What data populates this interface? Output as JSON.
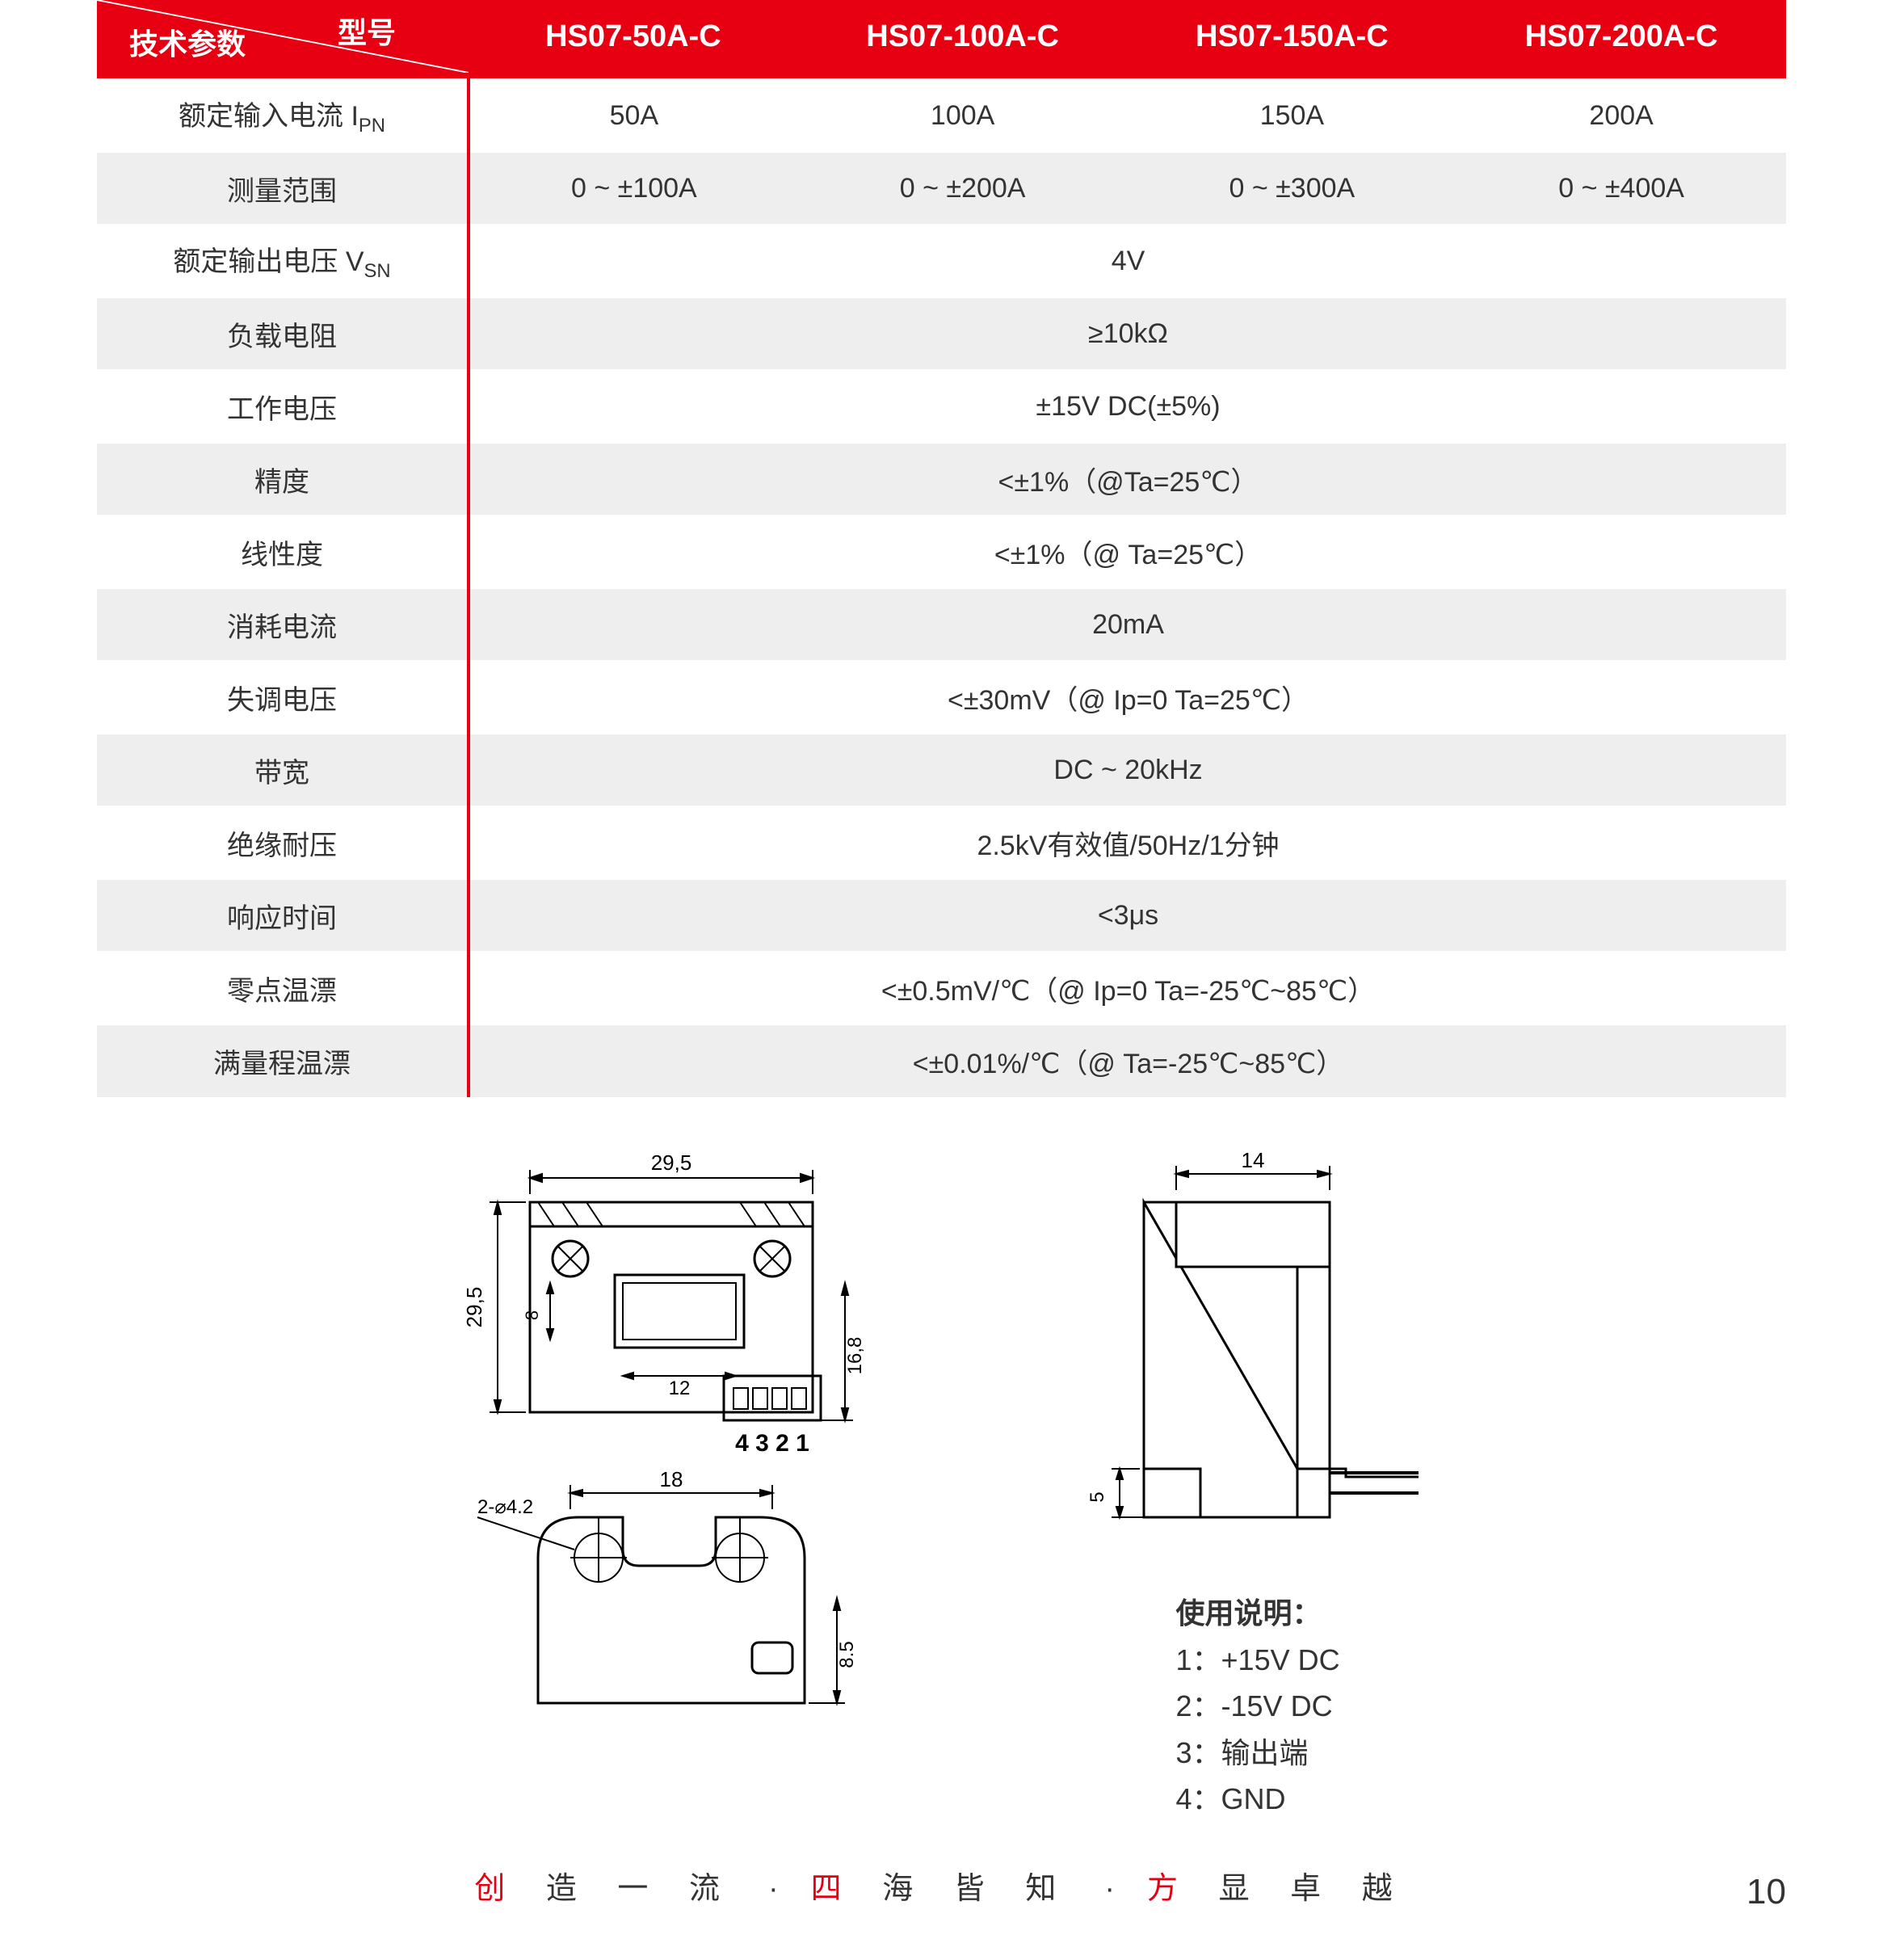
{
  "header": {
    "corner_top": "型号",
    "corner_bottom": "技术参数",
    "models": [
      "HS07-50A-C",
      "HS07-100A-C",
      "HS07-150A-C",
      "HS07-200A-C"
    ]
  },
  "rows": [
    {
      "name_html": "额定输入电流 I<sub>PN</sub>",
      "cells": [
        "50A",
        "100A",
        "150A",
        "200A"
      ],
      "shade": false
    },
    {
      "name_html": "测量范围",
      "cells": [
        "0 ~ ±100A",
        "0 ~ ±200A",
        "0 ~ ±300A",
        "0 ~ ±400A"
      ],
      "shade": true
    },
    {
      "name_html": "额定输出电压 V<sub>SN</sub>",
      "span": "4V",
      "shade": false
    },
    {
      "name_html": "负载电阻",
      "span": "≥10kΩ",
      "shade": true
    },
    {
      "name_html": "工作电压",
      "span": "±15V DC(±5%)",
      "shade": false
    },
    {
      "name_html": "精度",
      "span": "<±1%（@Ta=25℃）",
      "shade": true
    },
    {
      "name_html": "线性度",
      "span": "<±1%（@ Ta=25℃）",
      "shade": false
    },
    {
      "name_html": "消耗电流",
      "span": "20mA",
      "shade": true
    },
    {
      "name_html": "失调电压",
      "span": "<±30mV（@ Ip=0 Ta=25℃）",
      "shade": false
    },
    {
      "name_html": "带宽",
      "span": "DC ~ 20kHz",
      "shade": true
    },
    {
      "name_html": "绝缘耐压",
      "span": "2.5kV有效值/50Hz/1分钟",
      "shade": false
    },
    {
      "name_html": "响应时间",
      "span": "<3μs",
      "shade": true
    },
    {
      "name_html": "零点温漂",
      "span": "<±0.5mV/℃（@ Ip=0 Ta=-25℃~85℃）",
      "shade": false
    },
    {
      "name_html": "满量程温漂",
      "span": "<±0.01%/℃（@ Ta=-25℃~85℃）",
      "shade": true
    }
  ],
  "colors": {
    "brand_red": "#e60012",
    "zebra_grey": "#eeeeee",
    "text": "#333333",
    "white": "#ffffff",
    "dim_line": "#000000"
  },
  "diagram_top": {
    "overall_w": "29,5",
    "overall_h": "29,5",
    "inner_w": "12",
    "inner_h": "8",
    "conn_h": "16,8",
    "pin_label": "4 3 2 1",
    "screw_note": "⊘"
  },
  "diagram_front": {
    "width_dim": "18",
    "height_dim": "8.5",
    "hole_note": "2-⌀4.2"
  },
  "diagram_side": {
    "width_dim": "14",
    "foot_dim": "5"
  },
  "usage": {
    "title": "使用说明：",
    "lines": [
      "1：+15V DC",
      "2：-15V DC",
      "3：输出端",
      "4：GND"
    ]
  },
  "footer": {
    "seg1_red": "创",
    "seg1_rest": " 造 一 流",
    "seg2_red": "四",
    "seg2_rest": " 海 皆 知",
    "seg3_red": "方",
    "seg3_rest": " 显 卓 越",
    "dot": "·",
    "page": "10"
  }
}
